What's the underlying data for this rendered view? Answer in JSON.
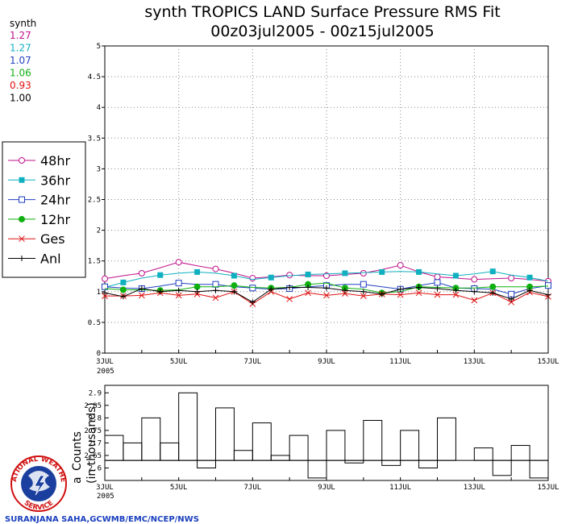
{
  "title_line1": "synth TROPICS LAND Surface Pressure RMS Fit",
  "title_line2": "00z03jul2005 - 00z15jul2005",
  "synth_header": "synth",
  "synth_values": [
    {
      "text": "1.27",
      "color": "#c0108a"
    },
    {
      "text": "1.27",
      "color": "#10b0c0"
    },
    {
      "text": "1.07",
      "color": "#2040c0"
    },
    {
      "text": "1.06",
      "color": "#10b010"
    },
    {
      "text": "0.93",
      "color": "#e01010"
    },
    {
      "text": "1.00",
      "color": "#000000"
    }
  ],
  "footer_credit": "SURANJANA SAHA,GCWMB/EMC/NCEP/NWS",
  "logo_text_top": "NATIONAL WEATHER",
  "logo_text_bottom": "SERVICE",
  "chart_data": [
    {
      "type": "line",
      "ylim": [
        0,
        5
      ],
      "yticks": [
        "0",
        "0.5",
        "1",
        "1.5",
        "2",
        "2.5",
        "3",
        "3.5",
        "4",
        "4.5",
        "5"
      ],
      "xlim_days": [
        3,
        15
      ],
      "xticks": [
        "3JUL",
        "5JUL",
        "7JUL",
        "9JUL",
        "11JUL",
        "13JUL",
        "15JUL"
      ],
      "x_year_label": "2005",
      "grid": true,
      "legend_position": "left",
      "x": [
        3,
        3.5,
        4,
        4.5,
        5,
        5.5,
        6,
        6.5,
        7,
        7.5,
        8,
        8.5,
        9,
        9.5,
        10,
        10.5,
        11,
        11.5,
        12,
        12.5,
        13,
        13.5,
        14,
        14.5,
        15
      ],
      "series": [
        {
          "name": "48hr",
          "color": "#c0108a",
          "marker": "open-circle",
          "marker_every": 2,
          "values": [
            1.21,
            1.26,
            1.3,
            1.39,
            1.48,
            1.42,
            1.37,
            1.3,
            1.22,
            1.24,
            1.27,
            1.26,
            1.26,
            1.28,
            1.3,
            1.36,
            1.43,
            1.32,
            1.24,
            1.22,
            1.2,
            1.21,
            1.22,
            1.2,
            1.17
          ]
        },
        {
          "name": "36hr",
          "color": "#10b0c0",
          "marker": "filled-square",
          "marker_every": 2,
          "marker_offset": 1,
          "values": [
            1.07,
            1.15,
            1.22,
            1.27,
            1.3,
            1.32,
            1.3,
            1.26,
            1.2,
            1.23,
            1.26,
            1.28,
            1.29,
            1.3,
            1.31,
            1.32,
            1.33,
            1.32,
            1.29,
            1.26,
            1.29,
            1.33,
            1.27,
            1.23,
            1.17
          ]
        },
        {
          "name": "24hr",
          "color": "#2040c0",
          "marker": "open-square",
          "marker_every": 2,
          "values": [
            1.08,
            1.06,
            1.05,
            1.09,
            1.14,
            1.12,
            1.12,
            1.08,
            1.06,
            1.04,
            1.05,
            1.08,
            1.1,
            1.12,
            1.12,
            1.08,
            1.04,
            1.1,
            1.15,
            1.06,
            1.05,
            1.04,
            0.96,
            1.05,
            1.1
          ]
        },
        {
          "name": "12hr",
          "color": "#10b010",
          "marker": "filled-circle",
          "marker_every": 2,
          "marker_offset": 1,
          "values": [
            1.05,
            1.03,
            1.03,
            1.02,
            1.03,
            1.08,
            1.08,
            1.1,
            1.07,
            1.06,
            1.07,
            1.12,
            1.14,
            1.06,
            1.04,
            0.98,
            1.0,
            1.08,
            1.07,
            1.06,
            1.06,
            1.08,
            1.08,
            1.08,
            1.09
          ]
        },
        {
          "name": "Ges",
          "color": "#e01010",
          "marker": "x",
          "marker_every": 1,
          "values": [
            0.93,
            0.93,
            0.94,
            0.98,
            0.94,
            0.96,
            0.9,
            1.0,
            0.8,
            1.0,
            0.88,
            0.98,
            0.94,
            0.97,
            0.93,
            0.96,
            0.95,
            0.98,
            0.95,
            0.95,
            0.86,
            0.98,
            0.83,
            0.99,
            0.92
          ]
        },
        {
          "name": "Anl",
          "color": "#000000",
          "marker": "plus",
          "marker_every": 1,
          "values": [
            0.98,
            0.92,
            1.05,
            1.0,
            1.02,
            1.0,
            1.02,
            1.0,
            0.83,
            1.04,
            1.07,
            1.07,
            1.06,
            1.02,
            1.0,
            0.96,
            1.04,
            1.07,
            1.05,
            1.02,
            1.0,
            0.98,
            0.88,
            1.02,
            0.95
          ]
        }
      ]
    },
    {
      "type": "bar",
      "ylabel_line1": "Counts",
      "ylabel_line2": "(in thousands)",
      "ylabel_partial": "a",
      "ylim": [
        2.55,
        2.93
      ],
      "yticks": [
        "2.55",
        "2.6",
        "2.65",
        "2.7",
        "2.75",
        "2.8",
        "2.85",
        "2.9"
      ],
      "baseline": 2.63,
      "xlim_days": [
        3,
        15
      ],
      "xticks": [
        "3JUL",
        "5JUL",
        "7JUL",
        "9JUL",
        "11JUL",
        "13JUL",
        "15JUL"
      ],
      "x_year_label": "2005",
      "values": [
        2.73,
        2.7,
        2.8,
        2.7,
        2.9,
        2.6,
        2.84,
        2.67,
        2.78,
        2.65,
        2.73,
        2.56,
        2.75,
        2.62,
        2.79,
        2.61,
        2.75,
        2.6,
        2.8,
        2.63,
        2.68,
        2.57,
        2.69,
        2.56
      ]
    }
  ]
}
